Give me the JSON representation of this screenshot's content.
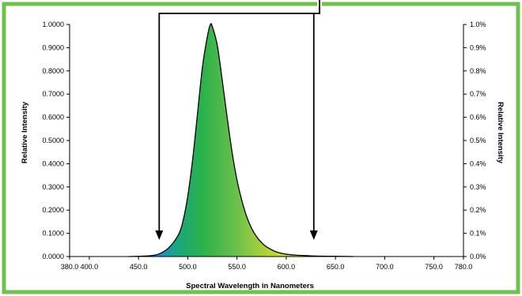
{
  "colors": {
    "frame": "#6cc24a",
    "background": "#ffffff",
    "curve_outline": "#000000",
    "spectrum_stops": [
      "#1f8fd0",
      "#1aa87a",
      "#2bb14a",
      "#6cc04a",
      "#b5d335",
      "#e6e619"
    ]
  },
  "chart_data": {
    "type": "area",
    "title": "",
    "xlabel": "Spectral Wavelength in Nanometers",
    "ylabel_left": "Relative Intensity",
    "ylabel_right": "Relative Intensity",
    "xlim": [
      380,
      780
    ],
    "ylim_left": [
      0,
      1
    ],
    "ylim_right": [
      0,
      1
    ],
    "x_ticks": [
      "380.0",
      "400.0",
      "450.0",
      "500.0",
      "550.0",
      "600.0",
      "650.0",
      "700.0",
      "750.0",
      "780.0"
    ],
    "x_tick_values": [
      380,
      400,
      450,
      500,
      550,
      600,
      650,
      700,
      750,
      780
    ],
    "y_ticks_left": [
      "0.0000",
      "0.1000",
      "0.2000",
      "0.3000",
      "0.4000",
      "0.5000",
      "0.6000",
      "0.7000",
      "0.8000",
      "0.9000",
      "1.0000"
    ],
    "y_ticks_right": [
      "0.0%",
      "0.1%",
      "0.2%",
      "0.3%",
      "0.4%",
      "0.5%",
      "0.6%",
      "0.7%",
      "0.8%",
      "0.9%",
      "1.0%"
    ],
    "y_tick_values": [
      0,
      0.1,
      0.2,
      0.3,
      0.4,
      0.5,
      0.6,
      0.7,
      0.8,
      0.9,
      1.0
    ],
    "grid": false,
    "series": [
      {
        "x": [
          440,
          460,
          470,
          480,
          490,
          495,
          500,
          505,
          510,
          515,
          520,
          523,
          525,
          530,
          535,
          540,
          545,
          550,
          555,
          560,
          565,
          570,
          575,
          580,
          590,
          600,
          610,
          620,
          630,
          650,
          668
        ],
        "values": [
          0,
          0.003,
          0.01,
          0.035,
          0.09,
          0.15,
          0.26,
          0.42,
          0.62,
          0.82,
          0.95,
          1.0,
          0.99,
          0.91,
          0.76,
          0.6,
          0.45,
          0.33,
          0.24,
          0.17,
          0.12,
          0.085,
          0.06,
          0.042,
          0.02,
          0.01,
          0.006,
          0.004,
          0.002,
          0.001,
          0
        ]
      }
    ],
    "annotations": [
      {
        "type": "arrow",
        "x": 471
      },
      {
        "type": "arrow",
        "x": 628
      }
    ]
  }
}
